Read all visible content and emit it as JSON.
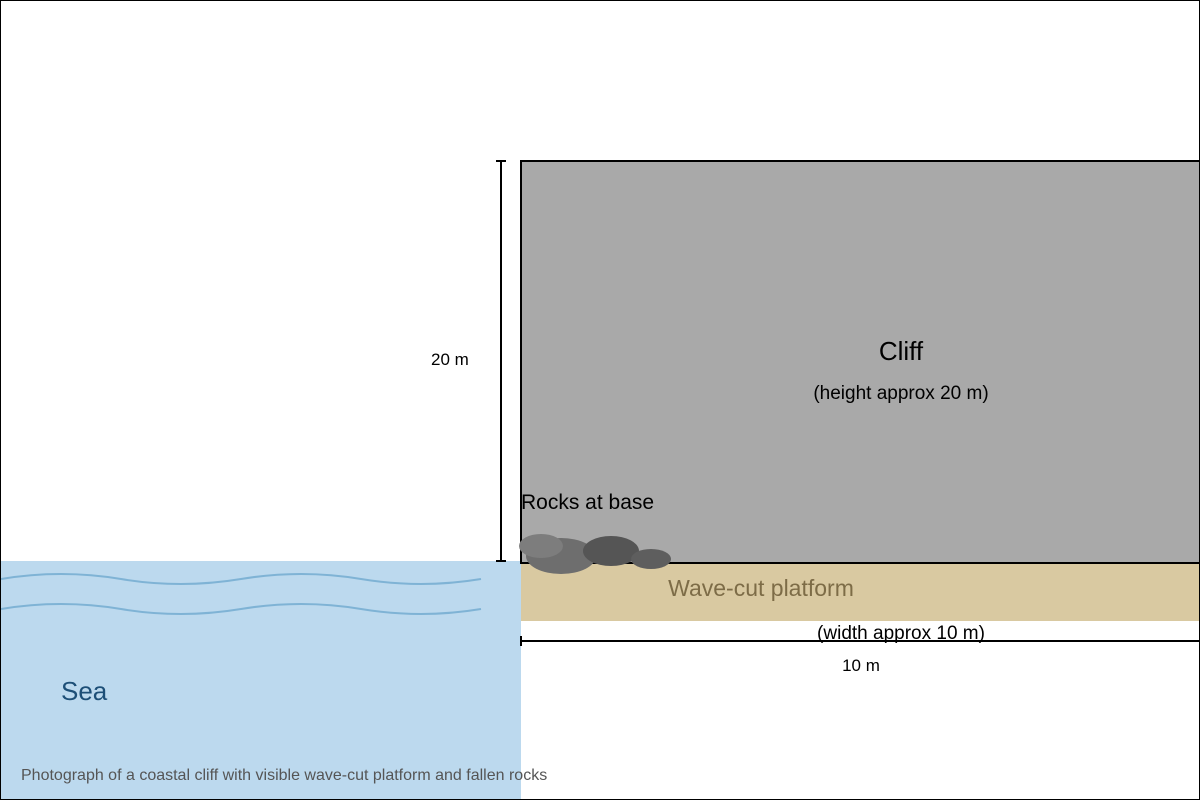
{
  "cliff": {
    "label": "Cliff",
    "sublabel": "(height approx 20 m)",
    "color": "#a9a9a9"
  },
  "platform": {
    "label": "Wave-cut platform",
    "sublabel": "(width approx 10 m)",
    "color": "#d9c9a1"
  },
  "sea": {
    "label": "Sea",
    "color": "#bcd9ee",
    "wave_color": "#7fb3d5"
  },
  "rocks": {
    "label": "Rocks at base",
    "colors": [
      "#6e6e6e",
      "#555555",
      "#5e5e5e",
      "#7d7d7d"
    ]
  },
  "dimensions": {
    "height_label": "20 m",
    "width_label": "10 m"
  },
  "caption": "Photograph of a coastal cliff with visible wave-cut platform and fallen rocks"
}
